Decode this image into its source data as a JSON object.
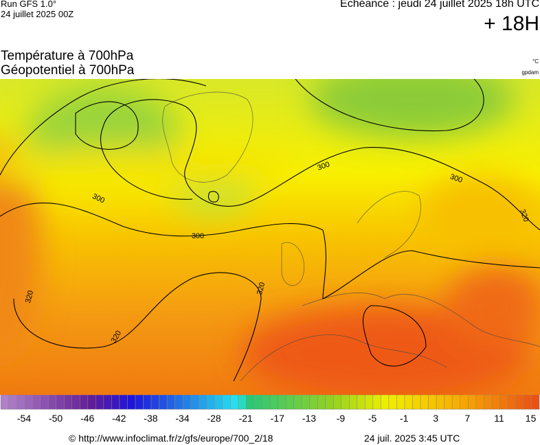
{
  "header": {
    "run": "Run GFS 1.0°",
    "run_date": "24 juillet 2025 00Z",
    "valid": "Echéance : jeudi 24 juillet 2025 18h UTC",
    "lead": "+ 18H"
  },
  "titles": {
    "temperature": "Température à 700hPa",
    "geopotential": "Géopotentiel à 700hPa",
    "temperature_unit": "°C",
    "geopotential_unit": "gpdam"
  },
  "contour_labels": [
    300,
    300,
    300,
    300,
    320,
    320,
    320,
    320
  ],
  "scale": {
    "labels": [
      -54,
      -50,
      -46,
      -42,
      -38,
      -34,
      -28,
      -21,
      -17,
      -13,
      -9,
      -5,
      -1,
      3,
      7,
      11,
      15
    ]
  },
  "footer": {
    "source": "© http://www.infoclimat.fr/z/gfs/europe/700_2/18",
    "generated": "24 juil. 2025  3:45 UTC"
  }
}
